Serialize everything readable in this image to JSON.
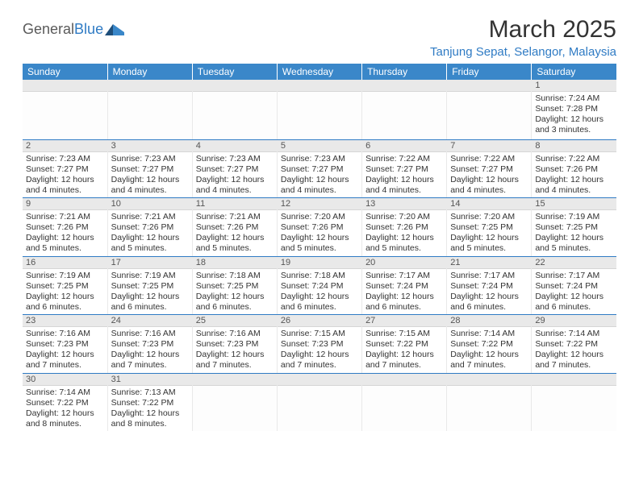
{
  "brand": {
    "part1": "General",
    "part2": "Blue"
  },
  "title": "March 2025",
  "location": "Tanjung Sepat, Selangor, Malaysia",
  "colors": {
    "header_bg": "#3a87c9",
    "header_text": "#ffffff",
    "accent": "#2f7bc4",
    "daynum_bg": "#e9e9e9",
    "text": "#333333",
    "logo_gray": "#5a5a5a"
  },
  "daysOfWeek": [
    "Sunday",
    "Monday",
    "Tuesday",
    "Wednesday",
    "Thursday",
    "Friday",
    "Saturday"
  ],
  "startOffset": 6,
  "daysInMonth": 31,
  "cells": {
    "1": {
      "sunrise": "7:24 AM",
      "sunset": "7:28 PM",
      "daylight": "12 hours and 3 minutes."
    },
    "2": {
      "sunrise": "7:23 AM",
      "sunset": "7:27 PM",
      "daylight": "12 hours and 4 minutes."
    },
    "3": {
      "sunrise": "7:23 AM",
      "sunset": "7:27 PM",
      "daylight": "12 hours and 4 minutes."
    },
    "4": {
      "sunrise": "7:23 AM",
      "sunset": "7:27 PM",
      "daylight": "12 hours and 4 minutes."
    },
    "5": {
      "sunrise": "7:23 AM",
      "sunset": "7:27 PM",
      "daylight": "12 hours and 4 minutes."
    },
    "6": {
      "sunrise": "7:22 AM",
      "sunset": "7:27 PM",
      "daylight": "12 hours and 4 minutes."
    },
    "7": {
      "sunrise": "7:22 AM",
      "sunset": "7:27 PM",
      "daylight": "12 hours and 4 minutes."
    },
    "8": {
      "sunrise": "7:22 AM",
      "sunset": "7:26 PM",
      "daylight": "12 hours and 4 minutes."
    },
    "9": {
      "sunrise": "7:21 AM",
      "sunset": "7:26 PM",
      "daylight": "12 hours and 5 minutes."
    },
    "10": {
      "sunrise": "7:21 AM",
      "sunset": "7:26 PM",
      "daylight": "12 hours and 5 minutes."
    },
    "11": {
      "sunrise": "7:21 AM",
      "sunset": "7:26 PM",
      "daylight": "12 hours and 5 minutes."
    },
    "12": {
      "sunrise": "7:20 AM",
      "sunset": "7:26 PM",
      "daylight": "12 hours and 5 minutes."
    },
    "13": {
      "sunrise": "7:20 AM",
      "sunset": "7:26 PM",
      "daylight": "12 hours and 5 minutes."
    },
    "14": {
      "sunrise": "7:20 AM",
      "sunset": "7:25 PM",
      "daylight": "12 hours and 5 minutes."
    },
    "15": {
      "sunrise": "7:19 AM",
      "sunset": "7:25 PM",
      "daylight": "12 hours and 5 minutes."
    },
    "16": {
      "sunrise": "7:19 AM",
      "sunset": "7:25 PM",
      "daylight": "12 hours and 6 minutes."
    },
    "17": {
      "sunrise": "7:19 AM",
      "sunset": "7:25 PM",
      "daylight": "12 hours and 6 minutes."
    },
    "18": {
      "sunrise": "7:18 AM",
      "sunset": "7:25 PM",
      "daylight": "12 hours and 6 minutes."
    },
    "19": {
      "sunrise": "7:18 AM",
      "sunset": "7:24 PM",
      "daylight": "12 hours and 6 minutes."
    },
    "20": {
      "sunrise": "7:17 AM",
      "sunset": "7:24 PM",
      "daylight": "12 hours and 6 minutes."
    },
    "21": {
      "sunrise": "7:17 AM",
      "sunset": "7:24 PM",
      "daylight": "12 hours and 6 minutes."
    },
    "22": {
      "sunrise": "7:17 AM",
      "sunset": "7:24 PM",
      "daylight": "12 hours and 6 minutes."
    },
    "23": {
      "sunrise": "7:16 AM",
      "sunset": "7:23 PM",
      "daylight": "12 hours and 7 minutes."
    },
    "24": {
      "sunrise": "7:16 AM",
      "sunset": "7:23 PM",
      "daylight": "12 hours and 7 minutes."
    },
    "25": {
      "sunrise": "7:16 AM",
      "sunset": "7:23 PM",
      "daylight": "12 hours and 7 minutes."
    },
    "26": {
      "sunrise": "7:15 AM",
      "sunset": "7:23 PM",
      "daylight": "12 hours and 7 minutes."
    },
    "27": {
      "sunrise": "7:15 AM",
      "sunset": "7:22 PM",
      "daylight": "12 hours and 7 minutes."
    },
    "28": {
      "sunrise": "7:14 AM",
      "sunset": "7:22 PM",
      "daylight": "12 hours and 7 minutes."
    },
    "29": {
      "sunrise": "7:14 AM",
      "sunset": "7:22 PM",
      "daylight": "12 hours and 7 minutes."
    },
    "30": {
      "sunrise": "7:14 AM",
      "sunset": "7:22 PM",
      "daylight": "12 hours and 8 minutes."
    },
    "31": {
      "sunrise": "7:13 AM",
      "sunset": "7:22 PM",
      "daylight": "12 hours and 8 minutes."
    }
  },
  "labels": {
    "sunrise": "Sunrise:",
    "sunset": "Sunset:",
    "daylight": "Daylight:"
  }
}
